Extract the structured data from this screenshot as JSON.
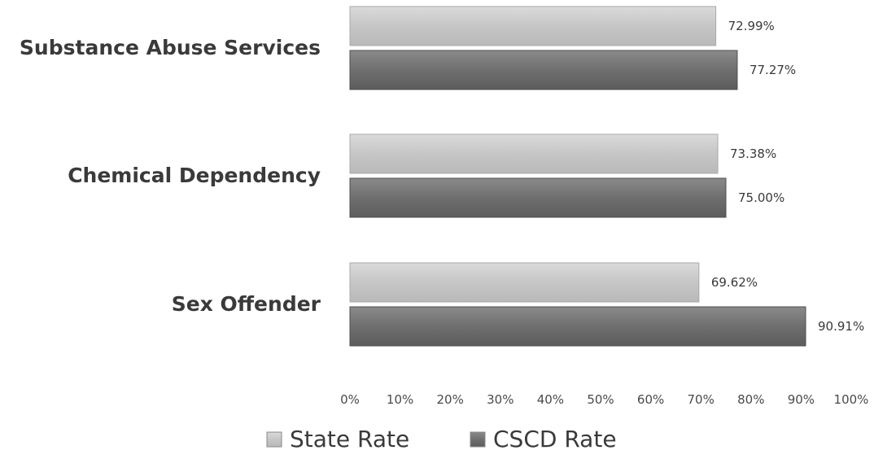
{
  "chart_data": {
    "type": "bar",
    "orientation": "horizontal",
    "categories": [
      "Substance Abuse Services",
      "Chemical Dependency",
      "Sex Offender"
    ],
    "series": [
      {
        "name": "State Rate",
        "values": [
          72.99,
          73.38,
          69.62
        ],
        "labels": [
          "72.99%",
          "73.38%",
          "69.62%"
        ],
        "color": "#c4c4c4"
      },
      {
        "name": "CSCD Rate",
        "values": [
          77.27,
          75.0,
          90.91
        ],
        "labels": [
          "77.27%",
          "75.00%",
          "90.91%"
        ],
        "color": "#6e6e6e"
      }
    ],
    "xlim": [
      0,
      100
    ],
    "xticks": [
      "0%",
      "10%",
      "20%",
      "30%",
      "40%",
      "50%",
      "60%",
      "70%",
      "80%",
      "90%",
      "100%"
    ],
    "grid": false,
    "legend_position": "bottom",
    "title": "",
    "xlabel": "",
    "ylabel": ""
  }
}
